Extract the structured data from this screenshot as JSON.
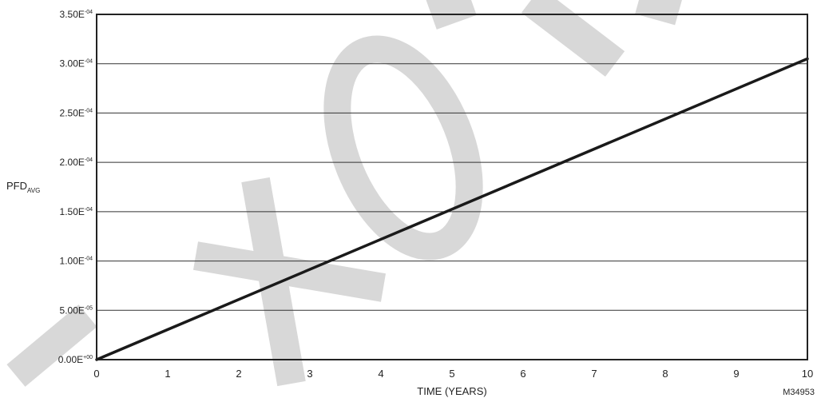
{
  "chart_data": {
    "type": "line",
    "title": "",
    "xlabel": "TIME (YEARS)",
    "ylabel": {
      "main": "PFD",
      "sub": "AVG"
    },
    "xlim": [
      0,
      10
    ],
    "ylim": [
      0,
      0.00035
    ],
    "x_ticks": [
      0,
      1,
      2,
      3,
      4,
      5,
      6,
      7,
      8,
      9,
      10
    ],
    "x_tick_labels": [
      "0",
      "1",
      "2",
      "3",
      "4",
      "5",
      "6",
      "7",
      "8",
      "9",
      "10"
    ],
    "y_ticks": [
      0,
      5e-05,
      0.0001,
      0.00015,
      0.0002,
      0.00025,
      0.0003,
      0.00035
    ],
    "y_tick_labels": [
      {
        "mantissa": "0.00E",
        "exp": "+00"
      },
      {
        "mantissa": "5.00E",
        "exp": "-05"
      },
      {
        "mantissa": "1.00E",
        "exp": "-04"
      },
      {
        "mantissa": "1.50E",
        "exp": "-04"
      },
      {
        "mantissa": "2.00E",
        "exp": "-04"
      },
      {
        "mantissa": "2.50E",
        "exp": "-04"
      },
      {
        "mantissa": "3.00E",
        "exp": "-04"
      },
      {
        "mantissa": "3.50E",
        "exp": "-04"
      }
    ],
    "grid": "horizontal",
    "series": [
      {
        "color": "#1a1a1a",
        "x": [
          0,
          10
        ],
        "y": [
          0,
          0.000305
        ]
      }
    ],
    "annotation": "M34953",
    "watermark": "axon"
  }
}
